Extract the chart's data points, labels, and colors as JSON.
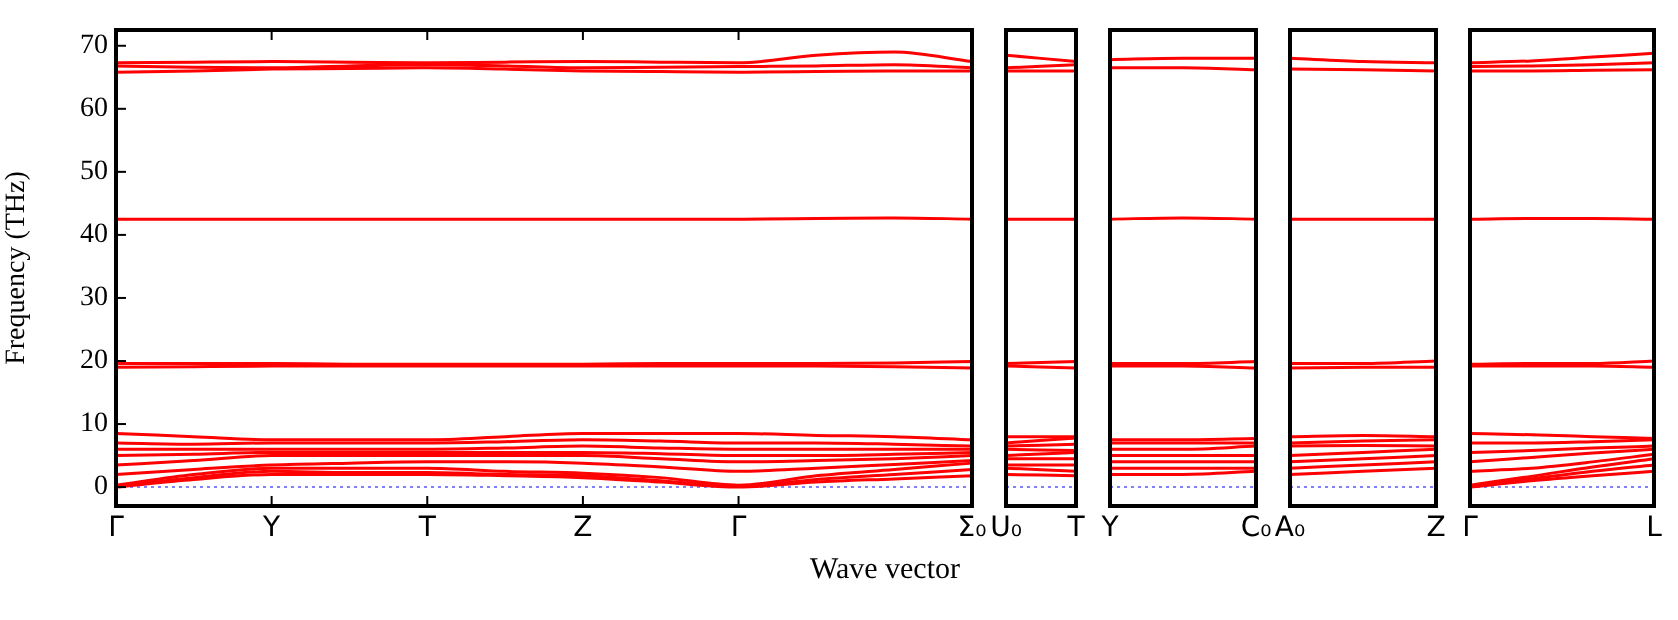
{
  "chart_data": [
    {
      "type": "line",
      "xlabel": "Wave vector",
      "ylabel": "Frequency (THz)",
      "categories": [
        "Γ",
        null,
        "Y",
        null,
        "T",
        null,
        "Z",
        null,
        "Γ",
        null,
        null,
        "Σ₀"
      ],
      "ylim": [
        -3,
        72.5
      ],
      "yticks": [
        0,
        10,
        20,
        30,
        40,
        50,
        60,
        70
      ],
      "ref_lines": [
        {
          "axis": "y",
          "value": 0,
          "color": "#8080ff",
          "line_style": "dotted"
        }
      ],
      "series": [
        {
          "color": "#ff0000",
          "values": [
            0,
            1.2,
            2,
            2,
            2,
            1.8,
            1.5,
            0.8,
            0,
            0.8,
            1.3,
            1.8
          ]
        },
        {
          "color": "#ff0000",
          "values": [
            0.1,
            1.5,
            2.5,
            2.3,
            2.3,
            2,
            1.8,
            1,
            0.1,
            1.2,
            2,
            2.8
          ]
        },
        {
          "color": "#ff0000",
          "values": [
            0.3,
            2,
            3,
            3,
            3,
            2.5,
            2.2,
            1.5,
            0.3,
            1.8,
            2.8,
            3.8
          ]
        },
        {
          "color": "#ff0000",
          "values": [
            2,
            2.8,
            3.5,
            3.8,
            4,
            4,
            3.8,
            3.2,
            2.5,
            3,
            3.6,
            4.2
          ]
        },
        {
          "color": "#ff0000",
          "values": [
            3.5,
            4.2,
            5,
            5,
            5,
            5,
            5,
            4.5,
            4,
            4.2,
            4.5,
            5
          ]
        },
        {
          "color": "#ff0000",
          "values": [
            5,
            5.2,
            5.5,
            5.5,
            5.5,
            5.5,
            5.5,
            5.3,
            5,
            5,
            5.2,
            5.5
          ]
        },
        {
          "color": "#ff0000",
          "values": [
            6,
            6,
            6,
            6,
            6,
            6.2,
            6.5,
            6.2,
            6,
            6,
            6,
            6
          ]
        },
        {
          "color": "#ff0000",
          "values": [
            7,
            6.8,
            7,
            7,
            7,
            7.2,
            7.5,
            7.3,
            7,
            7,
            6.8,
            6.5
          ]
        },
        {
          "color": "#ff0000",
          "values": [
            8.5,
            8,
            7.5,
            7.5,
            7.5,
            8,
            8.5,
            8.5,
            8.5,
            8.2,
            8,
            7.5
          ]
        },
        {
          "color": "#ff0000",
          "values": [
            19,
            19.1,
            19.2,
            19.2,
            19.2,
            19.2,
            19.2,
            19.2,
            19.2,
            19.2,
            19.1,
            18.9
          ]
        },
        {
          "color": "#ff0000",
          "values": [
            19.6,
            19.6,
            19.6,
            19.5,
            19.5,
            19.5,
            19.5,
            19.6,
            19.6,
            19.6,
            19.7,
            19.9
          ]
        },
        {
          "color": "#ff0000",
          "values": [
            42.5,
            42.5,
            42.5,
            42.5,
            42.5,
            42.5,
            42.5,
            42.5,
            42.5,
            42.6,
            42.7,
            42.5
          ]
        },
        {
          "color": "#ff0000",
          "values": [
            65.8,
            66,
            66.3,
            66.4,
            66.5,
            66.3,
            66,
            65.9,
            65.8,
            65.9,
            66,
            66
          ]
        },
        {
          "color": "#ff0000",
          "values": [
            66.8,
            66.6,
            66.5,
            66.8,
            67,
            66.8,
            66.5,
            66.6,
            66.7,
            66.8,
            67,
            66.5
          ]
        },
        {
          "color": "#ff0000",
          "values": [
            67.3,
            67.4,
            67.5,
            67.4,
            67.3,
            67.4,
            67.5,
            67.4,
            67.3,
            68.5,
            69,
            67.5
          ]
        }
      ]
    },
    {
      "type": "line",
      "tick_labels": "x",
      "categories": [
        "U₀",
        "T"
      ],
      "ylim": [
        -3,
        72.5
      ],
      "ref_lines": [
        {
          "axis": "y",
          "value": 0,
          "color": "#8080ff",
          "line_style": "dotted"
        }
      ],
      "series": [
        {
          "color": "#ff0000",
          "values": [
            2,
            1.8
          ]
        },
        {
          "color": "#ff0000",
          "values": [
            3,
            2.5
          ]
        },
        {
          "color": "#ff0000",
          "values": [
            3.5,
            3.5
          ]
        },
        {
          "color": "#ff0000",
          "values": [
            4.5,
            4.5
          ]
        },
        {
          "color": "#ff0000",
          "values": [
            5,
            5.5
          ]
        },
        {
          "color": "#ff0000",
          "values": [
            6,
            5.8
          ]
        },
        {
          "color": "#ff0000",
          "values": [
            6.5,
            6.8
          ]
        },
        {
          "color": "#ff0000",
          "values": [
            7,
            7.8
          ]
        },
        {
          "color": "#ff0000",
          "values": [
            8,
            8
          ]
        },
        {
          "color": "#ff0000",
          "values": [
            19.2,
            18.9
          ]
        },
        {
          "color": "#ff0000",
          "values": [
            19.6,
            19.9
          ]
        },
        {
          "color": "#ff0000",
          "values": [
            42.5,
            42.5
          ]
        },
        {
          "color": "#ff0000",
          "values": [
            66,
            66
          ]
        },
        {
          "color": "#ff0000",
          "values": [
            66.5,
            67
          ]
        },
        {
          "color": "#ff0000",
          "values": [
            68.5,
            67.5
          ]
        }
      ]
    },
    {
      "type": "line",
      "tick_labels": "x",
      "categories": [
        "Y",
        null,
        "C₀"
      ],
      "ylim": [
        -3,
        72.5
      ],
      "ref_lines": [
        {
          "axis": "y",
          "value": 0,
          "color": "#8080ff",
          "line_style": "dotted"
        }
      ],
      "series": [
        {
          "color": "#ff0000",
          "values": [
            2,
            2,
            2.5
          ]
        },
        {
          "color": "#ff0000",
          "values": [
            3,
            3,
            3
          ]
        },
        {
          "color": "#ff0000",
          "values": [
            4,
            4,
            4
          ]
        },
        {
          "color": "#ff0000",
          "values": [
            5,
            5,
            5
          ]
        },
        {
          "color": "#ff0000",
          "values": [
            6,
            6,
            6.5
          ]
        },
        {
          "color": "#ff0000",
          "values": [
            7,
            7,
            7
          ]
        },
        {
          "color": "#ff0000",
          "values": [
            7.5,
            7.5,
            7.7
          ]
        },
        {
          "color": "#ff0000",
          "values": [
            19.2,
            19.2,
            18.9
          ]
        },
        {
          "color": "#ff0000",
          "values": [
            19.6,
            19.6,
            19.9
          ]
        },
        {
          "color": "#ff0000",
          "values": [
            42.5,
            42.7,
            42.5
          ]
        },
        {
          "color": "#ff0000",
          "values": [
            66.5,
            66.5,
            66.2
          ]
        },
        {
          "color": "#ff0000",
          "values": [
            67.8,
            68,
            68
          ]
        }
      ]
    },
    {
      "type": "line",
      "tick_labels": "x",
      "categories": [
        "A₀",
        null,
        "Z"
      ],
      "ylim": [
        -3,
        72.5
      ],
      "ref_lines": [
        {
          "axis": "y",
          "value": 0,
          "color": "#8080ff",
          "line_style": "dotted"
        }
      ],
      "series": [
        {
          "color": "#ff0000",
          "values": [
            2,
            2.5,
            3
          ]
        },
        {
          "color": "#ff0000",
          "values": [
            3,
            3.5,
            4
          ]
        },
        {
          "color": "#ff0000",
          "values": [
            4,
            4.5,
            5
          ]
        },
        {
          "color": "#ff0000",
          "values": [
            5,
            5.5,
            6
          ]
        },
        {
          "color": "#ff0000",
          "values": [
            6.5,
            6.6,
            6.5
          ]
        },
        {
          "color": "#ff0000",
          "values": [
            7,
            7.3,
            7.5
          ]
        },
        {
          "color": "#ff0000",
          "values": [
            8,
            8.2,
            8
          ]
        },
        {
          "color": "#ff0000",
          "values": [
            18.9,
            19,
            19
          ]
        },
        {
          "color": "#ff0000",
          "values": [
            19.6,
            19.6,
            20
          ]
        },
        {
          "color": "#ff0000",
          "values": [
            42.5,
            42.5,
            42.5
          ]
        },
        {
          "color": "#ff0000",
          "values": [
            66.3,
            66.2,
            66
          ]
        },
        {
          "color": "#ff0000",
          "values": [
            68,
            67.5,
            67.3
          ]
        }
      ]
    },
    {
      "type": "line",
      "tick_labels": "x",
      "categories": [
        "Γ",
        null,
        null,
        "L"
      ],
      "ylim": [
        -3,
        72.5
      ],
      "ref_lines": [
        {
          "axis": "y",
          "value": 0,
          "color": "#8080ff",
          "line_style": "dotted"
        }
      ],
      "series": [
        {
          "color": "#ff0000",
          "values": [
            0,
            1,
            1.8,
            2.5
          ]
        },
        {
          "color": "#ff0000",
          "values": [
            0.1,
            1.3,
            2.5,
            3.5
          ]
        },
        {
          "color": "#ff0000",
          "values": [
            0.3,
            1.7,
            3.2,
            4.5
          ]
        },
        {
          "color": "#ff0000",
          "values": [
            2.5,
            3,
            4,
            5.2
          ]
        },
        {
          "color": "#ff0000",
          "values": [
            4,
            4.7,
            5.4,
            6
          ]
        },
        {
          "color": "#ff0000",
          "values": [
            5.5,
            5.8,
            6.2,
            6.5
          ]
        },
        {
          "color": "#ff0000",
          "values": [
            7,
            7,
            7.2,
            7.5
          ]
        },
        {
          "color": "#ff0000",
          "values": [
            8.5,
            8.3,
            8,
            7.7
          ]
        },
        {
          "color": "#ff0000",
          "values": [
            19.2,
            19.2,
            19.2,
            19
          ]
        },
        {
          "color": "#ff0000",
          "values": [
            19.5,
            19.6,
            19.6,
            20
          ]
        },
        {
          "color": "#ff0000",
          "values": [
            42.5,
            42.6,
            42.6,
            42.5
          ]
        },
        {
          "color": "#ff0000",
          "values": [
            66,
            66,
            66.1,
            66.2
          ]
        },
        {
          "color": "#ff0000",
          "values": [
            66.7,
            66.8,
            67,
            67.3
          ]
        },
        {
          "color": "#ff0000",
          "values": [
            67.3,
            67.6,
            68.2,
            68.8
          ]
        }
      ]
    }
  ]
}
